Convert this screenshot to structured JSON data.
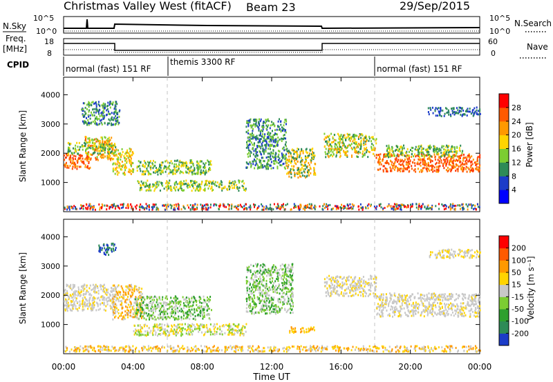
{
  "header": {
    "title": "Christmas Valley West (fitACF)",
    "beam": "Beam 23",
    "date": "29/Sep/2015"
  },
  "nsky_panel": {
    "left_label": "N.Sky",
    "right_label": "N.Search",
    "left_ticks": [
      "10^5",
      "10^0"
    ],
    "right_ticks": [
      "10^5",
      "10^0"
    ]
  },
  "freq_panel": {
    "left_label_1": "Freq.",
    "left_label_2": "[MHz]",
    "right_label": "Nave",
    "left_ticks": [
      "18",
      "8"
    ],
    "right_ticks": [
      "60",
      "0"
    ]
  },
  "cpid_panel": {
    "label": "CPID",
    "segments": [
      {
        "start_hour": 0,
        "end_hour": 3,
        "label": "normal (fast) 151 RF"
      },
      {
        "start_hour": 3,
        "end_hour": 18,
        "label": "themis 3300 RF"
      },
      {
        "start_hour": 18,
        "end_hour": 24,
        "label": "normal (fast) 151 RF"
      }
    ]
  },
  "x_axis": {
    "label": "Time UT",
    "ticks": [
      "00:00",
      "04:00",
      "08:00",
      "12:00",
      "16:00",
      "20:00",
      "00:00"
    ]
  },
  "chart_data": [
    {
      "type": "heatmap",
      "panel": "power",
      "ylabel": "Slant Range [km]",
      "xlim": [
        0,
        24
      ],
      "ylim": [
        0,
        4600
      ],
      "yticks": [
        "1000",
        "2000",
        "3000",
        "4000"
      ],
      "colorbar": {
        "label": "Power [dB]",
        "ticks": [
          "4",
          "8",
          "12",
          "16",
          "20",
          "24",
          "28"
        ],
        "colors": [
          "#0000ff",
          "#1c3cc8",
          "#2e8b57",
          "#7ccd32",
          "#ffd400",
          "#ff9900",
          "#ff5a00",
          "#ff0000"
        ]
      },
      "scatter_regions": [
        {
          "t": [
            0.0,
            1.5
          ],
          "r": [
            1500,
            2000
          ],
          "colors": [
            "#ff4d00",
            "#ff9900",
            "#ff3300"
          ]
        },
        {
          "t": [
            1.2,
            2.8
          ],
          "r": [
            1800,
            2600
          ],
          "colors": [
            "#ff9900",
            "#ffd400",
            "#ff5a00",
            "#7ccd32"
          ]
        },
        {
          "t": [
            0.2,
            3.0
          ],
          "r": [
            2000,
            2400
          ],
          "colors": [
            "#7ccd32",
            "#2e8b57",
            "#ffd400"
          ]
        },
        {
          "t": [
            2.8,
            4.0
          ],
          "r": [
            1300,
            2200
          ],
          "colors": [
            "#ffd400",
            "#7ccd32",
            "#ff9900"
          ]
        },
        {
          "t": [
            4.2,
            8.5
          ],
          "r": [
            1300,
            1800
          ],
          "colors": [
            "#7ccd32",
            "#ffd400",
            "#2e8b57"
          ]
        },
        {
          "t": [
            4.2,
            10.5
          ],
          "r": [
            750,
            1100
          ],
          "colors": [
            "#2e8b57",
            "#7ccd32",
            "#ffd400"
          ]
        },
        {
          "t": [
            1.0,
            3.2
          ],
          "r": [
            3000,
            3800
          ],
          "colors": [
            "#7ccd32",
            "#1c3cc8",
            "#2e8b57"
          ]
        },
        {
          "t": [
            10.5,
            12.8
          ],
          "r": [
            1500,
            3200
          ],
          "colors": [
            "#1c3cc8",
            "#2e8b57",
            "#7ccd32"
          ]
        },
        {
          "t": [
            12.8,
            14.5
          ],
          "r": [
            1200,
            2200
          ],
          "colors": [
            "#ff9900",
            "#ffd400",
            "#2e8b57"
          ]
        },
        {
          "t": [
            15.0,
            18.0
          ],
          "r": [
            1900,
            2700
          ],
          "colors": [
            "#ffd400",
            "#ff9900",
            "#7ccd32",
            "#2e8b57"
          ]
        },
        {
          "t": [
            18.0,
            24.0
          ],
          "r": [
            1400,
            2000
          ],
          "colors": [
            "#ff3300",
            "#ff5a00",
            "#ff9900"
          ]
        },
        {
          "t": [
            18.5,
            23.0
          ],
          "r": [
            1900,
            2300
          ],
          "colors": [
            "#2e8b57",
            "#7ccd32",
            "#ffd400"
          ]
        },
        {
          "t": [
            21.0,
            24.0
          ],
          "r": [
            3300,
            3600
          ],
          "colors": [
            "#1c3cc8",
            "#2e8b57"
          ]
        },
        {
          "t": [
            0.0,
            24.0
          ],
          "r": [
            100,
            300
          ],
          "colors": [
            "#1c3cc8",
            "#ff9900",
            "#2e8b57",
            "#ff0000"
          ]
        }
      ]
    },
    {
      "type": "heatmap",
      "panel": "velocity",
      "ylabel": "Slant Range [km]",
      "xlim": [
        0,
        24
      ],
      "ylim": [
        0,
        4600
      ],
      "yticks": [
        "1000",
        "2000",
        "3000",
        "4000"
      ],
      "colorbar": {
        "label": "Velocity [m s⁻¹]",
        "ticks": [
          "200",
          "100",
          "50",
          "15",
          "-15",
          "-50",
          "-100",
          "-200"
        ],
        "colors": [
          "#1c3cc8",
          "#2e8b57",
          "#2ea02e",
          "#7ccd32",
          "#c8c8c8",
          "#ffd400",
          "#ff9900",
          "#ff5a00",
          "#ff0000"
        ]
      },
      "scatter_regions": [
        {
          "t": [
            0.0,
            3.0
          ],
          "r": [
            1500,
            2400
          ],
          "colors": [
            "#c8c8c8",
            "#c8c8c8",
            "#ffd400"
          ]
        },
        {
          "t": [
            2.8,
            4.5
          ],
          "r": [
            1200,
            2400
          ],
          "colors": [
            "#ffd400",
            "#c8c8c8",
            "#ff9900"
          ]
        },
        {
          "t": [
            4.0,
            8.5
          ],
          "r": [
            1200,
            2000
          ],
          "colors": [
            "#7ccd32",
            "#c8c8c8",
            "#2ea02e"
          ]
        },
        {
          "t": [
            4.0,
            10.5
          ],
          "r": [
            650,
            1050
          ],
          "colors": [
            "#c8c8c8",
            "#ffd400",
            "#7ccd32"
          ]
        },
        {
          "t": [
            2.0,
            3.0
          ],
          "r": [
            3400,
            3800
          ],
          "colors": [
            "#1c3cc8",
            "#2e8b57"
          ]
        },
        {
          "t": [
            10.5,
            13.2
          ],
          "r": [
            1400,
            3100
          ],
          "colors": [
            "#7ccd32",
            "#c8c8c8",
            "#2ea02e"
          ]
        },
        {
          "t": [
            13.0,
            14.5
          ],
          "r": [
            750,
            950
          ],
          "colors": [
            "#ff9900",
            "#ffd400"
          ]
        },
        {
          "t": [
            15.0,
            18.0
          ],
          "r": [
            2000,
            2700
          ],
          "colors": [
            "#c8c8c8",
            "#c8c8c8",
            "#ffd400"
          ]
        },
        {
          "t": [
            18.0,
            24.0
          ],
          "r": [
            1300,
            2100
          ],
          "colors": [
            "#c8c8c8",
            "#c8c8c8",
            "#c8c8c8",
            "#ffd400"
          ]
        },
        {
          "t": [
            21.0,
            24.0
          ],
          "r": [
            3300,
            3600
          ],
          "colors": [
            "#c8c8c8",
            "#ffd400"
          ]
        },
        {
          "t": [
            0.0,
            24.0
          ],
          "r": [
            100,
            300
          ],
          "colors": [
            "#ffd400",
            "#ff9900",
            "#c8c8c8"
          ]
        }
      ]
    }
  ]
}
